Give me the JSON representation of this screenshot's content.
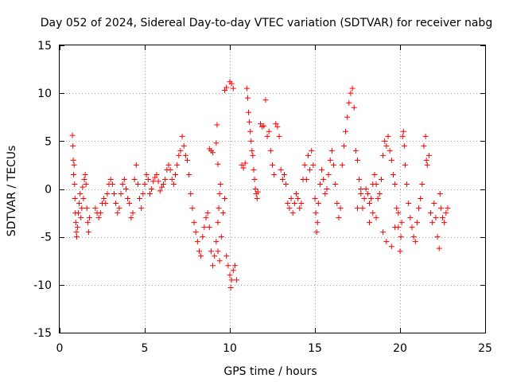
{
  "chart_data": {
    "type": "scatter",
    "title": "Day 052 of 2024, Sidereal Day-to-day VTEC variation (SDTVAR) for receiver nabg",
    "xlabel": "GPS time / hours",
    "ylabel": "SDTVAR / TECUs",
    "xlim": [
      0,
      25
    ],
    "ylim": [
      -15,
      15
    ],
    "x_ticks": [
      0,
      5,
      10,
      15,
      20,
      25
    ],
    "x_tick_labels": [
      "0",
      "5",
      "10",
      "15",
      "20",
      "25"
    ],
    "y_ticks": [
      -15,
      -10,
      -5,
      0,
      5,
      10,
      15
    ],
    "y_tick_labels": [
      "-15",
      "-10",
      "-5",
      "0",
      "5",
      "10",
      "15"
    ],
    "grid": true,
    "marker": "+",
    "color": "#ff0000",
    "series": [
      {
        "name": "SDTVAR",
        "points": [
          [
            0.75,
            5.6
          ],
          [
            0.78,
            4.5
          ],
          [
            0.8,
            3.0
          ],
          [
            0.82,
            1.5
          ],
          [
            0.85,
            2.5
          ],
          [
            0.88,
            0.5
          ],
          [
            0.9,
            -1.0
          ],
          [
            0.92,
            -2.5
          ],
          [
            0.95,
            -3.5
          ],
          [
            0.98,
            -4.5
          ],
          [
            1.0,
            -5.0
          ],
          [
            1.05,
            -4.0
          ],
          [
            1.1,
            -2.5
          ],
          [
            1.15,
            -1.5
          ],
          [
            1.2,
            -0.5
          ],
          [
            1.25,
            -3.0
          ],
          [
            1.3,
            -2.0
          ],
          [
            1.35,
            0.2
          ],
          [
            1.4,
            -1.0
          ],
          [
            1.45,
            1.0
          ],
          [
            1.5,
            1.5
          ],
          [
            1.55,
            0.5
          ],
          [
            1.6,
            -2.0
          ],
          [
            1.65,
            -3.5
          ],
          [
            1.7,
            -4.5
          ],
          [
            1.75,
            -3.0
          ],
          [
            2.1,
            -2.0
          ],
          [
            2.2,
            -2.5
          ],
          [
            2.3,
            -3.0
          ],
          [
            2.4,
            -2.5
          ],
          [
            2.5,
            -1.5
          ],
          [
            2.6,
            -1.0
          ],
          [
            2.7,
            -1.5
          ],
          [
            2.8,
            -0.5
          ],
          [
            2.9,
            0.5
          ],
          [
            3.0,
            1.0
          ],
          [
            3.1,
            0.5
          ],
          [
            3.2,
            -0.5
          ],
          [
            3.3,
            -1.5
          ],
          [
            3.4,
            -2.5
          ],
          [
            3.5,
            -2.0
          ],
          [
            3.6,
            -0.5
          ],
          [
            3.7,
            0.5
          ],
          [
            3.8,
            1.0
          ],
          [
            3.9,
            0.0
          ],
          [
            4.0,
            -1.0
          ],
          [
            4.1,
            -1.5
          ],
          [
            4.2,
            -3.0
          ],
          [
            4.3,
            -2.5
          ],
          [
            4.4,
            1.0
          ],
          [
            4.5,
            2.5
          ],
          [
            4.6,
            0.5
          ],
          [
            4.7,
            -1.0
          ],
          [
            4.8,
            -2.0
          ],
          [
            4.9,
            -0.5
          ],
          [
            5.0,
            0.5
          ],
          [
            5.1,
            1.5
          ],
          [
            5.2,
            1.0
          ],
          [
            5.3,
            -0.5
          ],
          [
            5.4,
            0.0
          ],
          [
            5.5,
            0.8
          ],
          [
            5.6,
            1.2
          ],
          [
            5.7,
            1.5
          ],
          [
            5.8,
            0.8
          ],
          [
            5.9,
            -0.2
          ],
          [
            6.0,
            0.2
          ],
          [
            6.1,
            0.5
          ],
          [
            6.2,
            1.0
          ],
          [
            6.3,
            2.0
          ],
          [
            6.4,
            2.5
          ],
          [
            6.5,
            2.0
          ],
          [
            6.6,
            1.0
          ],
          [
            6.7,
            0.5
          ],
          [
            6.8,
            1.5
          ],
          [
            6.9,
            2.5
          ],
          [
            7.0,
            3.5
          ],
          [
            7.1,
            4.0
          ],
          [
            7.2,
            5.5
          ],
          [
            7.3,
            4.5
          ],
          [
            7.4,
            3.5
          ],
          [
            7.5,
            3.0
          ],
          [
            7.6,
            1.5
          ],
          [
            7.7,
            -0.5
          ],
          [
            7.8,
            -2.0
          ],
          [
            7.9,
            -3.5
          ],
          [
            8.0,
            -4.5
          ],
          [
            8.1,
            -5.5
          ],
          [
            8.2,
            -6.5
          ],
          [
            8.3,
            -7.0
          ],
          [
            8.4,
            -5.0
          ],
          [
            8.5,
            -4.0
          ],
          [
            8.6,
            -3.0
          ],
          [
            8.7,
            -2.5
          ],
          [
            8.8,
            -4.0
          ],
          [
            8.9,
            -6.5
          ],
          [
            9.0,
            -8.0
          ],
          [
            9.1,
            -7.0
          ],
          [
            9.2,
            -5.5
          ],
          [
            9.3,
            -6.5
          ],
          [
            9.4,
            -7.5
          ],
          [
            9.5,
            -5.0
          ],
          [
            9.6,
            -2.5
          ],
          [
            9.7,
            -1.0
          ],
          [
            9.8,
            -7.0
          ],
          [
            9.9,
            -8.0
          ],
          [
            10.0,
            -9.0
          ],
          [
            10.05,
            -10.3
          ],
          [
            10.1,
            -9.5
          ],
          [
            10.2,
            -8.5
          ],
          [
            10.3,
            -8.0
          ],
          [
            10.4,
            -9.5
          ],
          [
            9.2,
            4.8
          ],
          [
            9.25,
            6.7
          ],
          [
            9.3,
            -3.5
          ],
          [
            9.35,
            -2.0
          ],
          [
            9.4,
            -0.5
          ],
          [
            9.45,
            0.5
          ],
          [
            8.8,
            4.2
          ],
          [
            8.9,
            4.0
          ],
          [
            9.0,
            3.8
          ],
          [
            9.3,
            2.6
          ],
          [
            9.7,
            10.3
          ],
          [
            9.8,
            10.6
          ],
          [
            10.0,
            11.2
          ],
          [
            10.1,
            11.0
          ],
          [
            10.2,
            10.5
          ],
          [
            10.7,
            2.5
          ],
          [
            10.8,
            2.2
          ],
          [
            10.9,
            2.7
          ],
          [
            11.0,
            10.5
          ],
          [
            11.05,
            9.5
          ],
          [
            11.1,
            8.0
          ],
          [
            11.15,
            7.0
          ],
          [
            11.2,
            6.0
          ],
          [
            11.25,
            5.0
          ],
          [
            11.3,
            4.0
          ],
          [
            11.35,
            3.5
          ],
          [
            11.4,
            2.0
          ],
          [
            11.45,
            1.0
          ],
          [
            11.5,
            0.0
          ],
          [
            11.55,
            -0.5
          ],
          [
            11.6,
            -1.0
          ],
          [
            11.65,
            -0.3
          ],
          [
            11.8,
            6.8
          ],
          [
            11.9,
            6.5
          ],
          [
            12.0,
            6.6
          ],
          [
            12.1,
            9.3
          ],
          [
            12.2,
            5.5
          ],
          [
            12.3,
            6.0
          ],
          [
            12.4,
            4.0
          ],
          [
            12.5,
            2.5
          ],
          [
            12.6,
            1.5
          ],
          [
            12.7,
            6.8
          ],
          [
            12.8,
            6.5
          ],
          [
            12.9,
            5.5
          ],
          [
            13.0,
            2.0
          ],
          [
            13.1,
            1.0
          ],
          [
            13.2,
            1.5
          ],
          [
            13.3,
            0.5
          ],
          [
            13.4,
            -1.5
          ],
          [
            13.5,
            -2.0
          ],
          [
            13.6,
            -1.0
          ],
          [
            13.7,
            -2.5
          ],
          [
            13.8,
            -1.5
          ],
          [
            13.9,
            -0.5
          ],
          [
            14.0,
            -1.0
          ],
          [
            14.1,
            -2.0
          ],
          [
            14.2,
            -1.5
          ],
          [
            14.3,
            1.0
          ],
          [
            14.4,
            2.5
          ],
          [
            14.5,
            1.0
          ],
          [
            14.6,
            3.5
          ],
          [
            14.7,
            2.0
          ],
          [
            14.8,
            4.0
          ],
          [
            14.9,
            2.5
          ],
          [
            15.0,
            -1.0
          ],
          [
            15.05,
            -2.5
          ],
          [
            15.1,
            -4.5
          ],
          [
            15.15,
            -3.5
          ],
          [
            15.2,
            -1.5
          ],
          [
            15.3,
            0.5
          ],
          [
            15.4,
            2.0
          ],
          [
            15.5,
            1.0
          ],
          [
            15.6,
            -0.5
          ],
          [
            15.7,
            0.0
          ],
          [
            15.8,
            1.5
          ],
          [
            15.9,
            3.0
          ],
          [
            16.0,
            4.0
          ],
          [
            16.1,
            2.5
          ],
          [
            16.2,
            0.5
          ],
          [
            16.3,
            -1.5
          ],
          [
            16.4,
            -3.0
          ],
          [
            16.5,
            -2.0
          ],
          [
            16.6,
            2.5
          ],
          [
            16.7,
            4.5
          ],
          [
            16.8,
            6.0
          ],
          [
            16.9,
            7.5
          ],
          [
            17.0,
            9.0
          ],
          [
            17.1,
            10.0
          ],
          [
            17.2,
            10.5
          ],
          [
            17.3,
            8.5
          ],
          [
            17.4,
            4.0
          ],
          [
            17.5,
            3.0
          ],
          [
            17.6,
            1.0
          ],
          [
            17.7,
            -0.5
          ],
          [
            17.8,
            -2.0
          ],
          [
            17.9,
            -1.0
          ],
          [
            18.0,
            0.0
          ],
          [
            18.1,
            -0.5
          ],
          [
            18.2,
            -1.5
          ],
          [
            18.3,
            -1.0
          ],
          [
            18.4,
            0.5
          ],
          [
            18.5,
            1.5
          ],
          [
            18.6,
            0.5
          ],
          [
            18.7,
            -1.0
          ],
          [
            18.8,
            -0.5
          ],
          [
            18.9,
            1.0
          ],
          [
            19.0,
            3.5
          ],
          [
            19.1,
            5.0
          ],
          [
            19.2,
            4.5
          ],
          [
            19.3,
            5.5
          ],
          [
            19.4,
            4.0
          ],
          [
            19.5,
            3.0
          ],
          [
            19.6,
            1.5
          ],
          [
            19.7,
            0.5
          ],
          [
            19.8,
            -2.0
          ],
          [
            19.9,
            -4.0
          ],
          [
            20.0,
            -6.5
          ],
          [
            20.05,
            -5.0
          ],
          [
            20.1,
            -3.5
          ],
          [
            20.15,
            5.5
          ],
          [
            20.2,
            6.0
          ],
          [
            20.25,
            4.5
          ],
          [
            20.3,
            2.5
          ],
          [
            20.4,
            0.5
          ],
          [
            20.5,
            -1.5
          ],
          [
            20.6,
            -3.0
          ],
          [
            20.7,
            -4.0
          ],
          [
            20.8,
            -5.0
          ],
          [
            20.9,
            -5.5
          ],
          [
            21.0,
            -3.5
          ],
          [
            21.1,
            -2.0
          ],
          [
            21.2,
            -1.0
          ],
          [
            21.3,
            0.5
          ],
          [
            21.4,
            4.5
          ],
          [
            21.5,
            5.5
          ],
          [
            21.55,
            3.0
          ],
          [
            21.6,
            2.5
          ],
          [
            21.7,
            3.5
          ],
          [
            21.8,
            -2.5
          ],
          [
            21.9,
            -3.5
          ],
          [
            22.0,
            -1.5
          ],
          [
            22.1,
            -3.0
          ],
          [
            22.2,
            -5.0
          ],
          [
            22.3,
            -6.2
          ],
          [
            22.35,
            -0.5
          ],
          [
            22.4,
            -2.0
          ],
          [
            22.5,
            -3.0
          ],
          [
            22.6,
            -3.5
          ],
          [
            22.7,
            -2.5
          ],
          [
            22.8,
            -2.0
          ],
          [
            18.2,
            -3.5
          ],
          [
            18.4,
            -2.5
          ],
          [
            18.6,
            -3.0
          ],
          [
            19.0,
            -4.5
          ],
          [
            19.2,
            -5.5
          ],
          [
            19.5,
            -6.0
          ],
          [
            19.7,
            -4.0
          ],
          [
            19.9,
            -2.5
          ],
          [
            17.5,
            -2.0
          ],
          [
            17.7,
            0.0
          ]
        ]
      }
    ]
  }
}
